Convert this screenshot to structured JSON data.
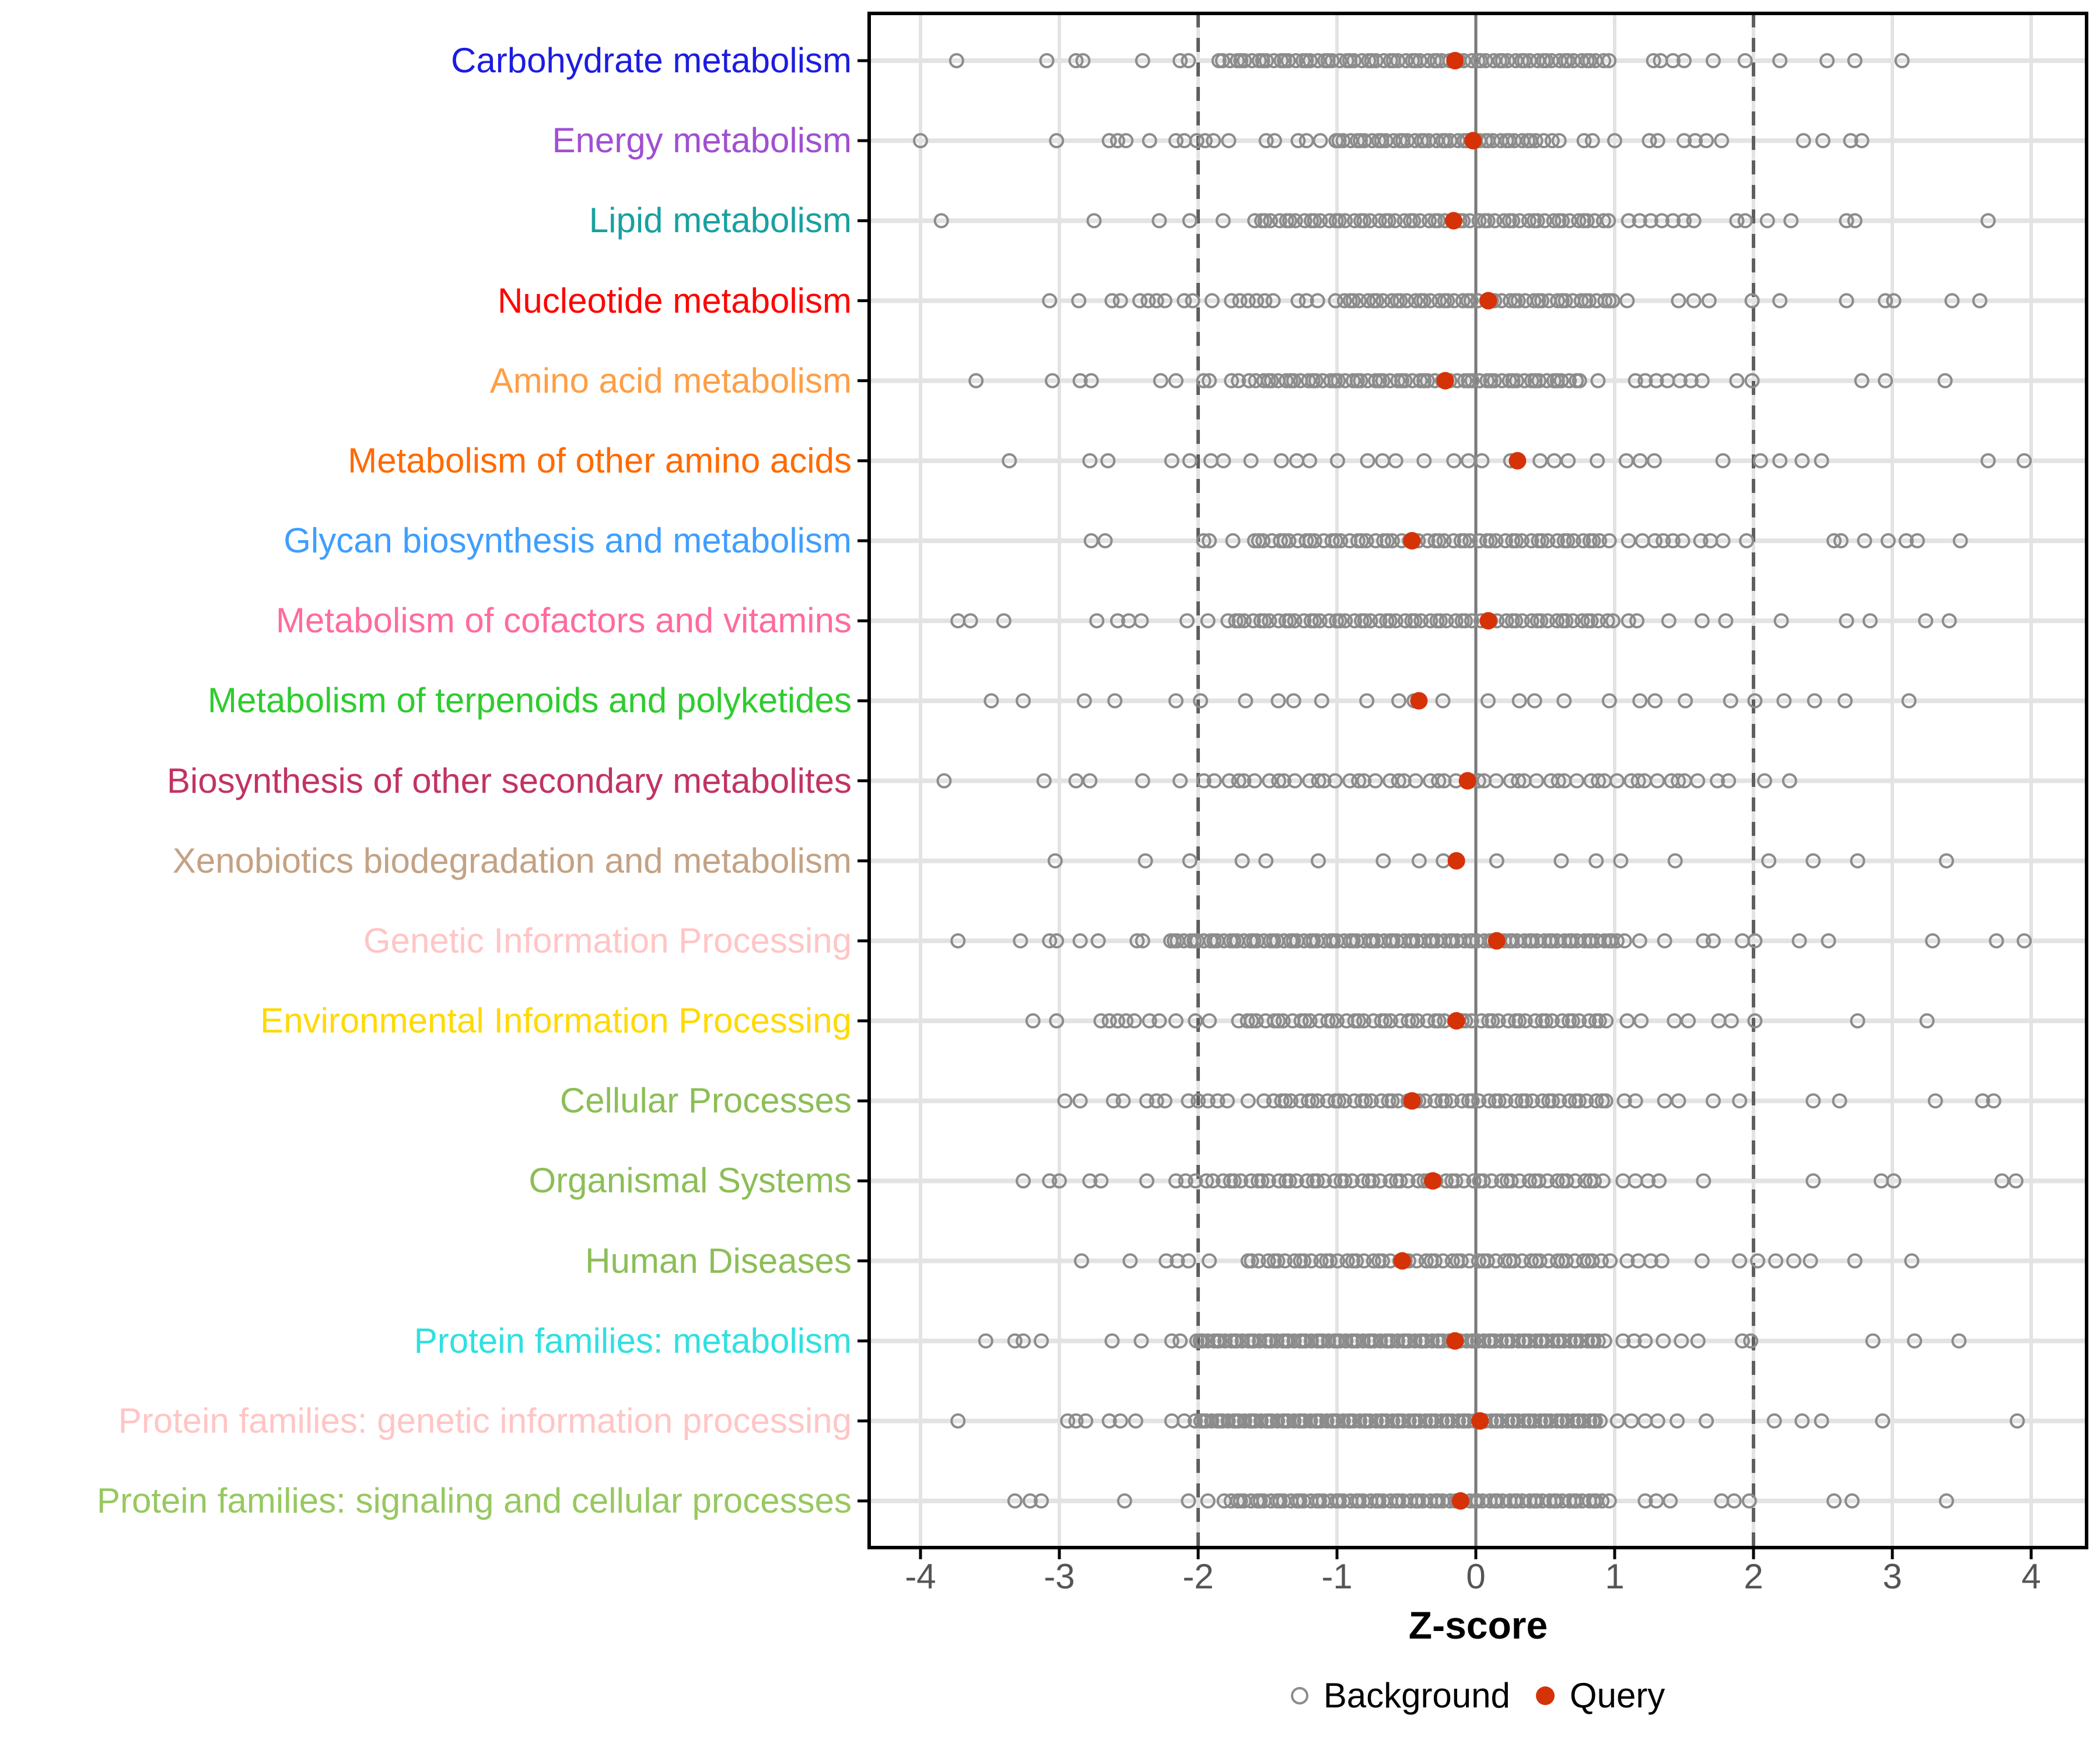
{
  "chart_data": {
    "type": "scatter",
    "title": "",
    "xlabel": "Z-score",
    "x_ticks": [
      -4,
      -3,
      -2,
      -1,
      0,
      1,
      2,
      3,
      4
    ],
    "xlim": [
      -4.4,
      4.4
    ],
    "grid": "on",
    "legend_position": "bottom",
    "reference_lines": {
      "solid": [
        0
      ],
      "dashed": [
        -2,
        2
      ]
    },
    "legend": [
      {
        "label": "Background",
        "marker": "open-circle",
        "color": "#8C8C8C"
      },
      {
        "label": "Query",
        "marker": "filled-circle",
        "color": "#D63207"
      }
    ],
    "colors": {
      "background_point": "#8C8C8C",
      "query_point": "#D63207",
      "gridline": "#E3E3E3",
      "refline_solid": "#7A7A7A",
      "refline_dashed": "#5F5F5F",
      "panel_border": "#000000",
      "tick_label": "#555555",
      "axis_tick": "#000000"
    },
    "rows": [
      {
        "label": "Carbohydrate metabolism",
        "color": "#1C1CE0",
        "query": -0.15,
        "background_outliers": [
          -3.74,
          -3.09,
          -2.88,
          -2.83,
          -2.4,
          -2.13,
          -2.07,
          1.28,
          1.33,
          1.42,
          1.5,
          1.71,
          1.94,
          2.19,
          2.53,
          2.73,
          3.07
        ],
        "background_band": {
          "min": -1.85,
          "max": 0.95,
          "n": 72
        }
      },
      {
        "label": "Energy metabolism",
        "color": "#A04FD3",
        "query": -0.02,
        "background_outliers": [
          -4.0,
          -3.02,
          -2.64,
          -2.58,
          -2.52,
          -2.35,
          -2.16,
          -2.1,
          -2.01,
          -1.95,
          -1.89,
          -1.78,
          -1.51,
          -1.45,
          -1.28,
          -1.22,
          -1.12,
          0.55,
          0.6,
          0.78,
          0.84,
          1.0,
          1.25,
          1.31,
          1.5,
          1.58,
          1.66,
          1.77,
          2.36,
          2.5,
          2.7,
          2.78
        ],
        "background_band": {
          "min": -1.02,
          "max": 0.48,
          "n": 40
        }
      },
      {
        "label": "Lipid metabolism",
        "color": "#19A0A0",
        "query": -0.16,
        "background_outliers": [
          -3.85,
          -2.75,
          -2.28,
          -2.06,
          -1.82,
          1.1,
          1.18,
          1.26,
          1.34,
          1.42,
          1.5,
          1.57,
          1.88,
          1.94,
          2.1,
          2.27,
          2.67,
          2.73,
          3.69
        ],
        "background_band": {
          "min": -1.6,
          "max": 0.95,
          "n": 58
        }
      },
      {
        "label": "Nucleotide metabolism",
        "color": "#FF0000",
        "query": 0.09,
        "background_outliers": [
          -3.07,
          -2.86,
          -2.62,
          -2.56,
          -2.42,
          -2.36,
          -2.3,
          -2.24,
          -2.1,
          -2.04,
          -1.9,
          -1.76,
          -1.7,
          -1.64,
          -1.58,
          -1.52,
          -1.46,
          -1.28,
          -1.22,
          -1.14,
          1.09,
          1.46,
          1.57,
          1.68,
          1.99,
          2.19,
          2.67,
          2.95,
          3.01,
          3.43,
          3.63
        ],
        "background_band": {
          "min": -1.0,
          "max": 1.0,
          "n": 48
        }
      },
      {
        "label": "Amino acid metabolism",
        "color": "#FF9E45",
        "query": -0.22,
        "background_outliers": [
          -3.6,
          -3.05,
          -2.85,
          -2.77,
          -2.27,
          -2.16,
          -1.96,
          -1.92,
          -1.76,
          -1.71,
          0.88,
          1.15,
          1.22,
          1.3,
          1.38,
          1.47,
          1.55,
          1.63,
          1.88,
          1.99,
          2.78,
          2.95,
          3.38
        ],
        "background_band": {
          "min": -1.62,
          "max": 0.75,
          "n": 60
        }
      },
      {
        "label": "Metabolism of other amino acids",
        "color": "#FF6A00",
        "query": 0.3,
        "background_outliers": [
          -3.36,
          -2.78,
          -2.65,
          -2.19,
          -2.06,
          1.78,
          2.05,
          2.19,
          2.35,
          2.49,
          3.69,
          3.95
        ],
        "background_band": {
          "min": -1.92,
          "max": 1.34,
          "n": 22
        }
      },
      {
        "label": "Glycan biosynthesis and metabolism",
        "color": "#3E9EFF",
        "query": -0.46,
        "background_outliers": [
          -2.77,
          -2.67,
          -1.96,
          -1.92,
          -1.75,
          1.1,
          1.2,
          1.29,
          1.35,
          1.42,
          1.49,
          1.62,
          1.69,
          1.78,
          1.95,
          2.58,
          2.63,
          2.8,
          2.97,
          3.1,
          3.18,
          3.49
        ],
        "background_band": {
          "min": -1.61,
          "max": 0.95,
          "n": 56
        }
      },
      {
        "label": "Metabolism of cofactors and vitamins",
        "color": "#FF6B9E",
        "query": 0.09,
        "background_outliers": [
          -3.73,
          -3.64,
          -3.4,
          -2.73,
          -2.58,
          -2.5,
          -2.41,
          -2.08,
          -1.93,
          1.1,
          1.16,
          1.39,
          1.63,
          1.8,
          2.2,
          2.67,
          2.84,
          3.24,
          3.41
        ],
        "background_band": {
          "min": -1.79,
          "max": 0.98,
          "n": 62
        }
      },
      {
        "label": "Metabolism of terpenoids and polyketides",
        "color": "#2ECC2E",
        "query": -0.41,
        "background_outliers": [
          -3.49,
          -3.26,
          -2.82,
          -2.6,
          -2.16,
          2.01,
          2.22,
          2.44,
          2.66,
          3.12
        ],
        "background_band": {
          "min": -1.92,
          "max": 1.78,
          "n": 18
        }
      },
      {
        "label": "Biosynthesis of other secondary metabolites",
        "color": "#C13365",
        "query": -0.06,
        "background_outliers": [
          -3.83,
          -3.11,
          -2.88,
          -2.78,
          -2.4,
          -2.13,
          1.74,
          1.82,
          2.08,
          2.26
        ],
        "background_band": {
          "min": -1.94,
          "max": 1.6,
          "n": 50
        }
      },
      {
        "label": "Xenobiotics biodegradation and metabolism",
        "color": "#C3A284",
        "query": -0.14,
        "background_outliers": [
          -3.03,
          -2.38,
          -2.06,
          2.11,
          2.43,
          2.75,
          3.39
        ],
        "background_band": {
          "min": -1.73,
          "max": 1.47,
          "n": 11
        }
      },
      {
        "label": "Genetic Information Processing",
        "color": "#FFC5C5",
        "query": 0.15,
        "background_outliers": [
          -3.73,
          -3.28,
          -3.07,
          -3.02,
          -2.85,
          -2.72,
          -2.44,
          -2.4,
          1.18,
          1.36,
          1.64,
          1.71,
          1.92,
          2.01,
          2.33,
          2.54,
          3.29,
          3.75,
          3.95
        ],
        "background_band": {
          "min": -2.21,
          "max": 1.06,
          "n": 92
        }
      },
      {
        "label": "Environmental Information Processing",
        "color": "#FFD900",
        "query": -0.14,
        "background_outliers": [
          -3.19,
          -3.02,
          -2.7,
          -2.64,
          -2.58,
          -2.52,
          -2.46,
          -2.35,
          -2.28,
          -2.16,
          -2.02,
          -1.92,
          1.09,
          1.19,
          1.43,
          1.53,
          1.75,
          1.84,
          2.01,
          2.75,
          3.25
        ],
        "background_band": {
          "min": -1.71,
          "max": 0.95,
          "n": 56
        }
      },
      {
        "label": "Cellular Processes",
        "color": "#8CBE57",
        "query": -0.46,
        "background_outliers": [
          -2.96,
          -2.85,
          -2.61,
          -2.54,
          -2.37,
          -2.3,
          -2.24,
          -2.07,
          -2.0,
          -1.93,
          -1.86,
          -1.79,
          -1.64,
          1.07,
          1.15,
          1.36,
          1.46,
          1.71,
          1.9,
          2.43,
          2.62,
          3.31,
          3.65,
          3.73
        ],
        "background_band": {
          "min": -1.51,
          "max": 0.95,
          "n": 52
        }
      },
      {
        "label": "Organismal Systems",
        "color": "#8CBE57",
        "query": -0.31,
        "background_outliers": [
          -3.26,
          -3.07,
          -3.0,
          -2.78,
          -2.7,
          -2.37,
          -2.16,
          -2.09,
          -2.02,
          1.06,
          1.15,
          1.24,
          1.32,
          1.64,
          2.43,
          2.92,
          3.01,
          3.79,
          3.89
        ],
        "background_band": {
          "min": -1.93,
          "max": 0.92,
          "n": 58
        }
      },
      {
        "label": "Human Diseases",
        "color": "#8CBE57",
        "query": -0.53,
        "background_outliers": [
          -2.84,
          -2.49,
          -2.23,
          -2.15,
          -2.07,
          -1.92,
          1.09,
          1.17,
          1.26,
          1.34,
          1.63,
          1.9,
          2.03,
          2.16,
          2.29,
          2.41,
          2.73,
          3.14
        ],
        "background_band": {
          "min": -1.65,
          "max": 0.95,
          "n": 56
        }
      },
      {
        "label": "Protein families: metabolism",
        "color": "#30E0E0",
        "query": -0.15,
        "background_outliers": [
          -3.53,
          -3.32,
          -3.26,
          -3.13,
          -2.62,
          -2.41,
          -2.19,
          -2.13,
          1.06,
          1.14,
          1.22,
          1.35,
          1.48,
          1.6,
          1.92,
          1.98,
          2.86,
          3.16,
          3.48
        ],
        "background_band": {
          "min": -2.02,
          "max": 0.92,
          "n": 96
        }
      },
      {
        "label": "Protein families: genetic information processing",
        "color": "#FFC5C5",
        "query": 0.03,
        "background_outliers": [
          -3.73,
          -2.94,
          -2.88,
          -2.81,
          -2.64,
          -2.56,
          -2.45,
          -2.19,
          -2.1,
          1.02,
          1.12,
          1.22,
          1.31,
          1.45,
          1.66,
          2.15,
          2.35,
          2.49,
          2.93,
          3.9
        ],
        "background_band": {
          "min": -2.02,
          "max": 0.9,
          "n": 100
        }
      },
      {
        "label": "Protein families: signaling and cellular processes",
        "color": "#97C860",
        "query": -0.11,
        "background_outliers": [
          -3.32,
          -3.21,
          -3.13,
          -2.53,
          -2.07,
          -1.93,
          1.22,
          1.3,
          1.4,
          1.77,
          1.86,
          1.97,
          2.58,
          2.71,
          3.39
        ],
        "background_band": {
          "min": -1.8,
          "max": 0.95,
          "n": 78
        }
      }
    ]
  }
}
